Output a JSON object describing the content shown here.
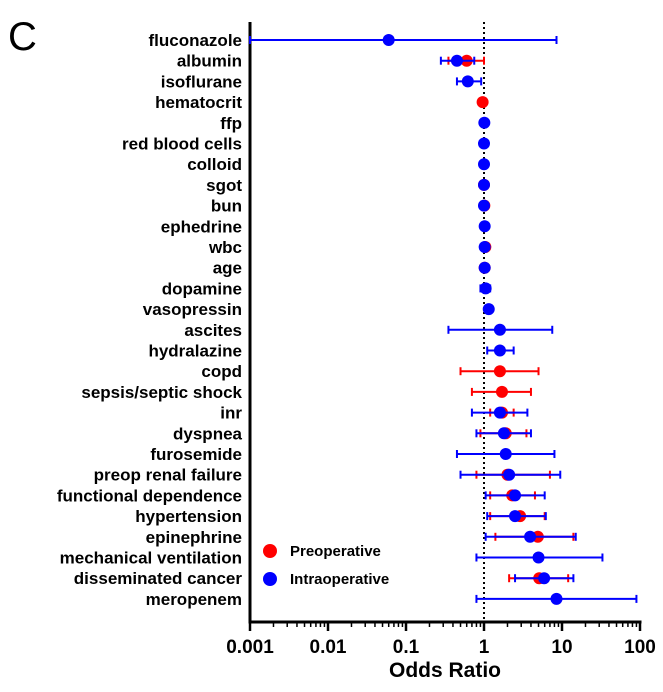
{
  "panel_label": "C",
  "chart_data": {
    "type": "scatter",
    "subtype": "forest-plot",
    "xlabel": "Odds Ratio",
    "xscale": "log",
    "xlim": [
      0.001,
      100
    ],
    "xticks": [
      "0.001",
      "0.01",
      "0.1",
      "1",
      "10",
      "100"
    ],
    "reference_line": 1,
    "legend_position": "bottom-left",
    "colors": {
      "Preoperative": "#ff0000",
      "Intraoperative": "#0000ff"
    },
    "categories": [
      "fluconazole",
      "albumin",
      "isoflurane",
      "hematocrit",
      "ffp",
      "red blood cells",
      "colloid",
      "sgot",
      "bun",
      "ephedrine",
      "wbc",
      "age",
      "dopamine",
      "vasopressin",
      "ascites",
      "hydralazine",
      "copd",
      "sepsis/septic shock",
      "inr",
      "dyspnea",
      "furosemide",
      "preop renal failure",
      "functional dependence",
      "hypertension",
      "epinephrine",
      "mechanical ventilation",
      "disseminated cancer",
      "meropenem"
    ],
    "series": [
      {
        "name": "Preoperative",
        "points": [
          {
            "category": "albumin",
            "or": 0.6,
            "lo": 0.35,
            "hi": 1.0
          },
          {
            "category": "hematocrit",
            "or": 0.96,
            "lo": 0.92,
            "hi": 1.0
          },
          {
            "category": "sgot",
            "or": 1.0,
            "lo": 0.99,
            "hi": 1.01
          },
          {
            "category": "bun",
            "or": 1.01,
            "lo": 1.0,
            "hi": 1.02
          },
          {
            "category": "wbc",
            "or": 1.04,
            "lo": 1.0,
            "hi": 1.08
          },
          {
            "category": "age",
            "or": 1.02,
            "lo": 1.01,
            "hi": 1.03
          },
          {
            "category": "copd",
            "or": 1.6,
            "lo": 0.5,
            "hi": 5.0
          },
          {
            "category": "sepsis/septic shock",
            "or": 1.7,
            "lo": 0.7,
            "hi": 4.0
          },
          {
            "category": "inr",
            "or": 1.7,
            "lo": 1.2,
            "hi": 2.4
          },
          {
            "category": "dyspnea",
            "or": 1.9,
            "lo": 0.9,
            "hi": 3.5
          },
          {
            "category": "preop renal failure",
            "or": 2.0,
            "lo": 0.8,
            "hi": 7.0
          },
          {
            "category": "functional dependence",
            "or": 2.3,
            "lo": 1.2,
            "hi": 4.5
          },
          {
            "category": "hypertension",
            "or": 2.9,
            "lo": 1.2,
            "hi": 6.0
          },
          {
            "category": "epinephrine",
            "or": 4.9,
            "lo": 1.4,
            "hi": 14.0
          },
          {
            "category": "disseminated cancer",
            "or": 5.1,
            "lo": 2.1,
            "hi": 12.0
          }
        ]
      },
      {
        "name": "Intraoperative",
        "points": [
          {
            "category": "fluconazole",
            "or": 0.06,
            "lo": 0.001,
            "hi": 8.5
          },
          {
            "category": "albumin",
            "or": 0.45,
            "lo": 0.28,
            "hi": 0.75
          },
          {
            "category": "isoflurane",
            "or": 0.62,
            "lo": 0.45,
            "hi": 0.92
          },
          {
            "category": "ffp",
            "or": 1.01,
            "lo": 1.0,
            "hi": 1.02
          },
          {
            "category": "red blood cells",
            "or": 1.0,
            "lo": 0.99,
            "hi": 1.01
          },
          {
            "category": "colloid",
            "or": 1.0,
            "lo": 0.99,
            "hi": 1.01
          },
          {
            "category": "sgot",
            "or": 1.0,
            "lo": 0.99,
            "hi": 1.01
          },
          {
            "category": "bun",
            "or": 1.0,
            "lo": 0.99,
            "hi": 1.01
          },
          {
            "category": "ephedrine",
            "or": 1.02,
            "lo": 1.0,
            "hi": 1.04
          },
          {
            "category": "wbc",
            "or": 1.02,
            "lo": 1.0,
            "hi": 1.04
          },
          {
            "category": "age",
            "or": 1.02,
            "lo": 1.0,
            "hi": 1.04
          },
          {
            "category": "dopamine",
            "or": 1.05,
            "lo": 0.9,
            "hi": 1.2
          },
          {
            "category": "vasopressin",
            "or": 1.15,
            "lo": 1.05,
            "hi": 1.25
          },
          {
            "category": "ascites",
            "or": 1.6,
            "lo": 0.35,
            "hi": 7.5
          },
          {
            "category": "hydralazine",
            "or": 1.6,
            "lo": 1.1,
            "hi": 2.4
          },
          {
            "category": "inr",
            "or": 1.6,
            "lo": 0.7,
            "hi": 3.6
          },
          {
            "category": "dyspnea",
            "or": 1.8,
            "lo": 0.8,
            "hi": 4.0
          },
          {
            "category": "furosemide",
            "or": 1.9,
            "lo": 0.45,
            "hi": 8.0
          },
          {
            "category": "preop renal failure",
            "or": 2.1,
            "lo": 0.5,
            "hi": 9.5
          },
          {
            "category": "functional dependence",
            "or": 2.5,
            "lo": 1.05,
            "hi": 6.0
          },
          {
            "category": "hypertension",
            "or": 2.5,
            "lo": 1.1,
            "hi": 6.2
          },
          {
            "category": "epinephrine",
            "or": 3.9,
            "lo": 1.05,
            "hi": 15.0
          },
          {
            "category": "mechanical ventilation",
            "or": 5.0,
            "lo": 0.8,
            "hi": 33.0
          },
          {
            "category": "disseminated cancer",
            "or": 5.9,
            "lo": 2.5,
            "hi": 14.0
          },
          {
            "category": "meropenem",
            "or": 8.5,
            "lo": 0.8,
            "hi": 90.0
          }
        ]
      }
    ]
  }
}
